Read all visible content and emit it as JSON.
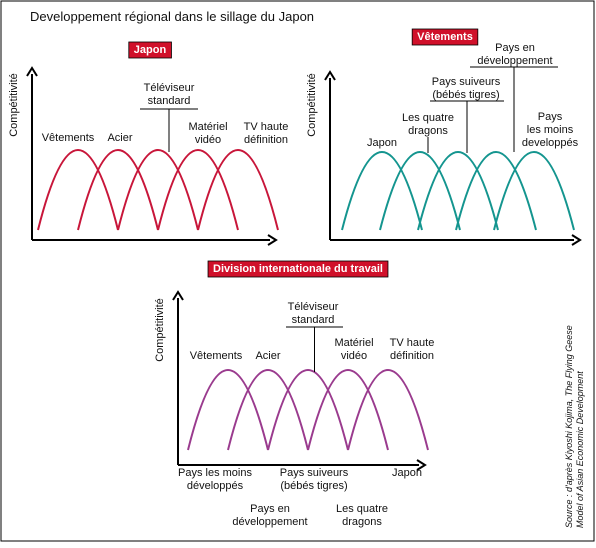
{
  "title": "Developpement régional dans le sillage du Japon",
  "panels": [
    {
      "tag": "Japon",
      "y_axis": "Compétitivité",
      "labels": [
        [
          "Vêtements"
        ],
        [
          "Acier"
        ],
        [
          "Téléviseur",
          "standard"
        ],
        [
          "Matériel",
          "vidéo"
        ],
        [
          "TV haute",
          "définition"
        ]
      ]
    },
    {
      "tag": "Vêtements",
      "y_axis": "Compétitivité",
      "labels": [
        [
          "Japon"
        ],
        [
          "Les quatre",
          "dragons"
        ],
        [
          "Pays suiveurs",
          "(bébés tigres)"
        ],
        [
          "Pays en",
          "développement"
        ],
        [
          "Pays",
          "les moins",
          "developpés"
        ]
      ]
    },
    {
      "tag": "Division internationale du travail",
      "y_axis": "Compétitivité",
      "labels": [
        [
          "Vêtements"
        ],
        [
          "Acier"
        ],
        [
          "Téléviseur",
          "standard"
        ],
        [
          "Matériel",
          "vidéo"
        ],
        [
          "TV haute",
          "définition"
        ]
      ],
      "bottom_labels": [
        [
          "Pays les moins",
          "développés"
        ],
        [
          "Pays suiveurs",
          "(bébés tigres)"
        ],
        [
          "Japon"
        ],
        [
          "Pays en",
          "développement"
        ],
        [
          "Les quatre",
          "dragons"
        ]
      ]
    }
  ],
  "source": [
    "Source : d'après Kiyoshi Kojima, The Flying Geese",
    "Model of Asian Economic Development"
  ]
}
